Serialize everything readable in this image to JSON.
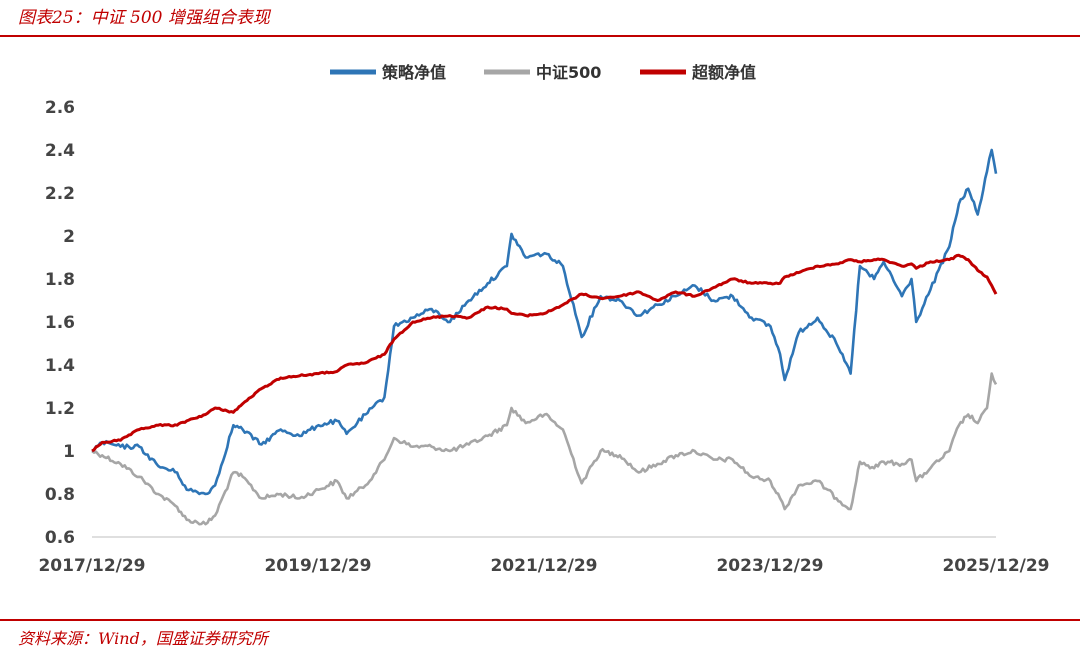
{
  "caption": "图表25：中证 500 增强组合表现",
  "source": "资料来源：Wind，国盛证券研究所",
  "chart_data": {
    "type": "line",
    "x_tick_labels": [
      "2017/12/29",
      "2019/12/29",
      "2021/12/29",
      "2023/12/29",
      "2025/12/29"
    ],
    "x_range": [
      "2017-12-29",
      "2025-12-29"
    ],
    "ylim": [
      0.6,
      2.6
    ],
    "y_ticks": [
      0.6,
      0.8,
      1,
      1.2,
      1.4,
      1.6,
      1.8,
      2,
      2.2,
      2.4,
      2.6
    ],
    "legend_position": "top-center",
    "grid": false,
    "series": [
      {
        "name": "策略净值",
        "color": "#2e75b6",
        "points": [
          [
            "2017-12-29",
            1.0
          ],
          [
            "2018-01-31",
            1.04
          ],
          [
            "2018-03-31",
            1.02
          ],
          [
            "2018-05-31",
            1.02
          ],
          [
            "2018-07-31",
            0.93
          ],
          [
            "2018-09-30",
            0.9
          ],
          [
            "2018-10-31",
            0.82
          ],
          [
            "2018-12-31",
            0.8
          ],
          [
            "2019-01-31",
            0.84
          ],
          [
            "2019-03-31",
            1.12
          ],
          [
            "2019-04-30",
            1.1
          ],
          [
            "2019-06-30",
            1.03
          ],
          [
            "2019-08-31",
            1.1
          ],
          [
            "2019-10-31",
            1.07
          ],
          [
            "2019-12-31",
            1.12
          ],
          [
            "2020-02-29",
            1.14
          ],
          [
            "2020-03-31",
            1.08
          ],
          [
            "2020-05-31",
            1.17
          ],
          [
            "2020-07-31",
            1.25
          ],
          [
            "2020-08-31",
            1.58
          ],
          [
            "2020-10-31",
            1.62
          ],
          [
            "2020-12-31",
            1.66
          ],
          [
            "2021-02-28",
            1.6
          ],
          [
            "2021-04-30",
            1.7
          ],
          [
            "2021-06-30",
            1.78
          ],
          [
            "2021-08-31",
            1.86
          ],
          [
            "2021-09-15",
            2.01
          ],
          [
            "2021-10-31",
            1.9
          ],
          [
            "2021-12-31",
            1.92
          ],
          [
            "2022-02-28",
            1.86
          ],
          [
            "2022-04-30",
            1.53
          ],
          [
            "2022-06-30",
            1.72
          ],
          [
            "2022-08-31",
            1.7
          ],
          [
            "2022-10-31",
            1.63
          ],
          [
            "2022-12-31",
            1.68
          ],
          [
            "2023-02-28",
            1.72
          ],
          [
            "2023-04-30",
            1.77
          ],
          [
            "2023-06-30",
            1.7
          ],
          [
            "2023-08-31",
            1.72
          ],
          [
            "2023-10-31",
            1.62
          ],
          [
            "2023-12-31",
            1.58
          ],
          [
            "2024-01-31",
            1.45
          ],
          [
            "2024-02-15",
            1.33
          ],
          [
            "2024-03-31",
            1.55
          ],
          [
            "2024-05-31",
            1.62
          ],
          [
            "2024-07-31",
            1.5
          ],
          [
            "2024-09-15",
            1.36
          ],
          [
            "2024-10-15",
            1.86
          ],
          [
            "2024-11-30",
            1.8
          ],
          [
            "2024-12-31",
            1.88
          ],
          [
            "2025-02-28",
            1.72
          ],
          [
            "2025-03-31",
            1.8
          ],
          [
            "2025-04-15",
            1.6
          ],
          [
            "2025-05-31",
            1.75
          ],
          [
            "2025-07-31",
            1.95
          ],
          [
            "2025-08-31",
            2.15
          ],
          [
            "2025-09-30",
            2.22
          ],
          [
            "2025-10-31",
            2.1
          ],
          [
            "2025-11-30",
            2.3
          ],
          [
            "2025-12-15",
            2.4
          ],
          [
            "2025-12-29",
            2.29
          ]
        ]
      },
      {
        "name": "中证500",
        "color": "#a6a6a6",
        "points": [
          [
            "2017-12-29",
            1.0
          ],
          [
            "2018-01-31",
            0.98
          ],
          [
            "2018-03-31",
            0.94
          ],
          [
            "2018-05-31",
            0.88
          ],
          [
            "2018-07-31",
            0.8
          ],
          [
            "2018-09-30",
            0.74
          ],
          [
            "2018-10-31",
            0.68
          ],
          [
            "2018-12-31",
            0.66
          ],
          [
            "2019-01-31",
            0.7
          ],
          [
            "2019-03-31",
            0.9
          ],
          [
            "2019-04-30",
            0.88
          ],
          [
            "2019-06-30",
            0.78
          ],
          [
            "2019-08-31",
            0.8
          ],
          [
            "2019-10-31",
            0.78
          ],
          [
            "2019-12-31",
            0.82
          ],
          [
            "2020-02-29",
            0.86
          ],
          [
            "2020-03-31",
            0.78
          ],
          [
            "2020-05-31",
            0.84
          ],
          [
            "2020-07-31",
            0.96
          ],
          [
            "2020-08-31",
            1.06
          ],
          [
            "2020-10-31",
            1.02
          ],
          [
            "2020-12-31",
            1.02
          ],
          [
            "2021-02-28",
            1.0
          ],
          [
            "2021-04-30",
            1.03
          ],
          [
            "2021-06-30",
            1.07
          ],
          [
            "2021-08-31",
            1.12
          ],
          [
            "2021-09-15",
            1.2
          ],
          [
            "2021-10-31",
            1.13
          ],
          [
            "2021-12-31",
            1.17
          ],
          [
            "2022-02-28",
            1.1
          ],
          [
            "2022-04-30",
            0.85
          ],
          [
            "2022-06-30",
            1.0
          ],
          [
            "2022-08-31",
            0.98
          ],
          [
            "2022-10-31",
            0.9
          ],
          [
            "2022-12-31",
            0.94
          ],
          [
            "2023-02-28",
            0.98
          ],
          [
            "2023-04-30",
            1.0
          ],
          [
            "2023-06-30",
            0.96
          ],
          [
            "2023-08-31",
            0.96
          ],
          [
            "2023-10-31",
            0.88
          ],
          [
            "2023-12-31",
            0.86
          ],
          [
            "2024-01-31",
            0.78
          ],
          [
            "2024-02-15",
            0.73
          ],
          [
            "2024-03-31",
            0.84
          ],
          [
            "2024-05-31",
            0.86
          ],
          [
            "2024-07-31",
            0.78
          ],
          [
            "2024-09-15",
            0.73
          ],
          [
            "2024-10-15",
            0.95
          ],
          [
            "2024-11-30",
            0.92
          ],
          [
            "2024-12-31",
            0.95
          ],
          [
            "2025-02-28",
            0.94
          ],
          [
            "2025-03-31",
            0.96
          ],
          [
            "2025-04-15",
            0.86
          ],
          [
            "2025-05-31",
            0.92
          ],
          [
            "2025-07-31",
            1.0
          ],
          [
            "2025-08-31",
            1.12
          ],
          [
            "2025-09-30",
            1.17
          ],
          [
            "2025-10-31",
            1.13
          ],
          [
            "2025-11-30",
            1.2
          ],
          [
            "2025-12-15",
            1.36
          ],
          [
            "2025-12-29",
            1.31
          ]
        ]
      },
      {
        "name": "超额净值",
        "color": "#c00000",
        "points": [
          [
            "2017-12-29",
            1.0
          ],
          [
            "2018-01-31",
            1.04
          ],
          [
            "2018-03-31",
            1.05
          ],
          [
            "2018-05-31",
            1.1
          ],
          [
            "2018-07-31",
            1.12
          ],
          [
            "2018-09-30",
            1.12
          ],
          [
            "2018-10-31",
            1.14
          ],
          [
            "2018-12-31",
            1.17
          ],
          [
            "2019-01-31",
            1.2
          ],
          [
            "2019-03-31",
            1.18
          ],
          [
            "2019-04-30",
            1.22
          ],
          [
            "2019-06-30",
            1.29
          ],
          [
            "2019-08-31",
            1.34
          ],
          [
            "2019-10-31",
            1.35
          ],
          [
            "2019-12-31",
            1.36
          ],
          [
            "2020-02-29",
            1.37
          ],
          [
            "2020-03-31",
            1.4
          ],
          [
            "2020-05-31",
            1.41
          ],
          [
            "2020-07-31",
            1.45
          ],
          [
            "2020-08-31",
            1.52
          ],
          [
            "2020-10-31",
            1.6
          ],
          [
            "2020-12-31",
            1.62
          ],
          [
            "2021-02-28",
            1.63
          ],
          [
            "2021-04-30",
            1.62
          ],
          [
            "2021-06-30",
            1.67
          ],
          [
            "2021-08-31",
            1.66
          ],
          [
            "2021-09-15",
            1.64
          ],
          [
            "2021-10-31",
            1.63
          ],
          [
            "2021-12-31",
            1.64
          ],
          [
            "2022-02-28",
            1.68
          ],
          [
            "2022-04-30",
            1.73
          ],
          [
            "2022-06-30",
            1.71
          ],
          [
            "2022-08-31",
            1.72
          ],
          [
            "2022-10-31",
            1.74
          ],
          [
            "2022-12-31",
            1.7
          ],
          [
            "2023-02-28",
            1.74
          ],
          [
            "2023-04-30",
            1.72
          ],
          [
            "2023-06-30",
            1.76
          ],
          [
            "2023-08-31",
            1.8
          ],
          [
            "2023-10-31",
            1.78
          ],
          [
            "2023-12-31",
            1.78
          ],
          [
            "2024-01-31",
            1.78
          ],
          [
            "2024-02-15",
            1.81
          ],
          [
            "2024-03-31",
            1.83
          ],
          [
            "2024-05-31",
            1.86
          ],
          [
            "2024-07-31",
            1.87
          ],
          [
            "2024-09-15",
            1.89
          ],
          [
            "2024-10-15",
            1.88
          ],
          [
            "2024-11-30",
            1.89
          ],
          [
            "2024-12-31",
            1.89
          ],
          [
            "2025-02-28",
            1.86
          ],
          [
            "2025-03-31",
            1.87
          ],
          [
            "2025-04-15",
            1.85
          ],
          [
            "2025-05-31",
            1.88
          ],
          [
            "2025-07-31",
            1.89
          ],
          [
            "2025-08-31",
            1.91
          ],
          [
            "2025-09-30",
            1.89
          ],
          [
            "2025-10-31",
            1.84
          ],
          [
            "2025-11-30",
            1.81
          ],
          [
            "2025-12-15",
            1.77
          ],
          [
            "2025-12-29",
            1.73
          ]
        ]
      }
    ]
  }
}
